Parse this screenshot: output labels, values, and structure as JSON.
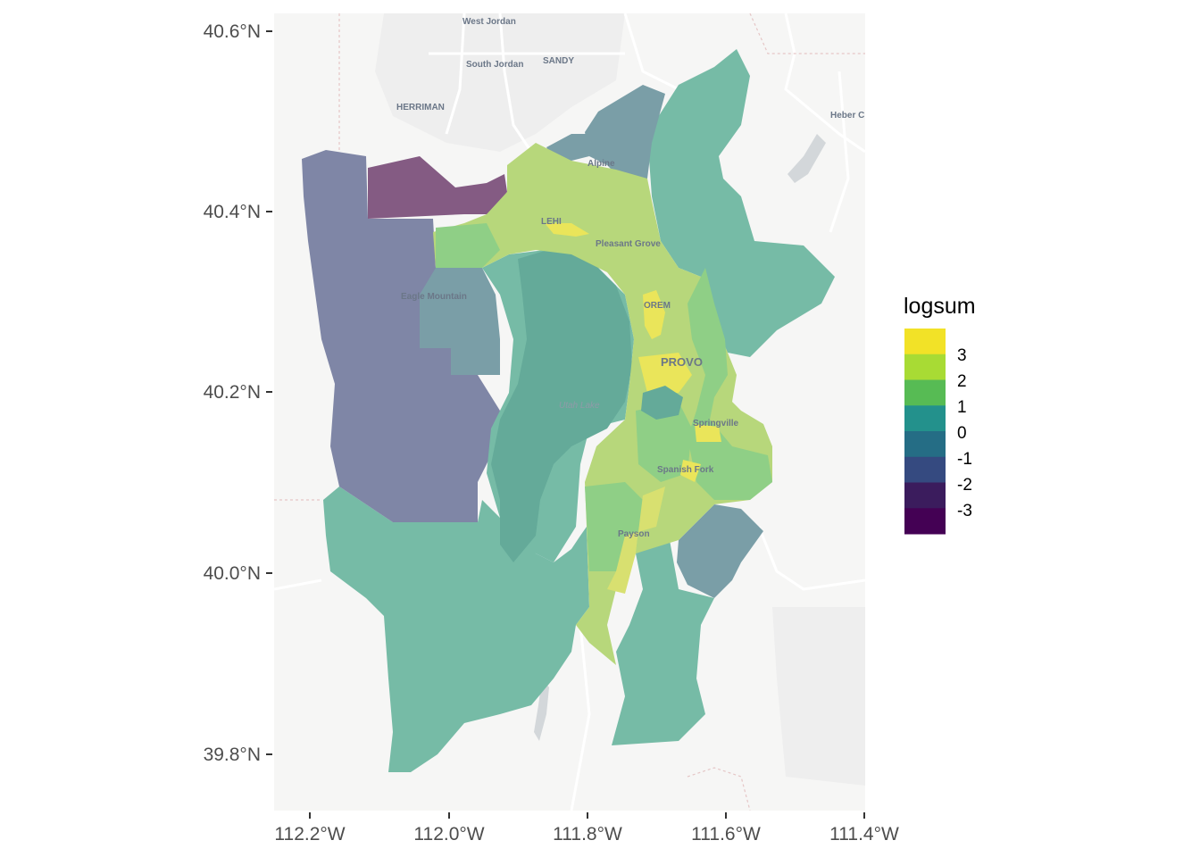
{
  "map": {
    "y_ticks": [
      "40.6°N",
      "40.4°N",
      "40.2°N",
      "40.0°N",
      "39.8°N"
    ],
    "x_ticks": [
      "112.2°W",
      "112.0°W",
      "111.8°W",
      "111.6°W",
      "111.4°W"
    ],
    "places": [
      {
        "name": "West Jordan",
        "size": "small"
      },
      {
        "name": "South Jordan",
        "size": "small"
      },
      {
        "name": "SANDY",
        "size": "small"
      },
      {
        "name": "HERRIMAN",
        "size": "small"
      },
      {
        "name": "Heber C",
        "size": "small"
      },
      {
        "name": "Alpine",
        "size": "small"
      },
      {
        "name": "LEHI",
        "size": "small"
      },
      {
        "name": "Pleasant Grove",
        "size": "small"
      },
      {
        "name": "Eagle Mountain",
        "size": "small"
      },
      {
        "name": "OREM",
        "size": "small"
      },
      {
        "name": "PROVO",
        "size": "big"
      },
      {
        "name": "Utah Lake",
        "size": "lake"
      },
      {
        "name": "Springville",
        "size": "small"
      },
      {
        "name": "Spanish Fork",
        "size": "small"
      },
      {
        "name": "Payson",
        "size": "small"
      }
    ]
  },
  "legend": {
    "title": "logsum",
    "labels": [
      "3",
      "2",
      "1",
      "0",
      "-1",
      "-2",
      "-3"
    ],
    "colors": [
      "#f2e227",
      "#a8db34",
      "#57bb54",
      "#23918c",
      "#256d85",
      "#354a80",
      "#3b1c5d",
      "#440154"
    ]
  },
  "palette": {
    "panel_bg": "#f6f6f5",
    "teal_soft": "#76bba6",
    "teal_mid": "#64aa99",
    "purple_soft": "#7f86a6",
    "purple_dark": "#845b83",
    "steel": "#7a9ea7",
    "slate": "#6f8ea7",
    "lime": "#b7d77b",
    "yellow": "#eae55a",
    "green_soft": "#8fcf86"
  }
}
